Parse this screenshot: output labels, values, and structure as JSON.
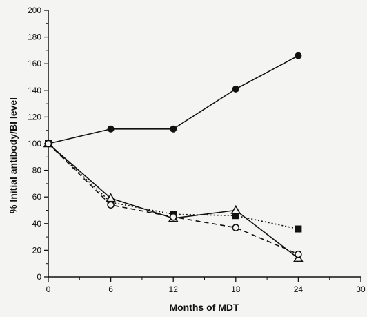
{
  "chart_data": {
    "type": "line",
    "title": "",
    "xlabel": "Months of MDT",
    "ylabel": "% Initial antibody/BI level",
    "xlim": [
      0,
      30
    ],
    "ylim": [
      0,
      200
    ],
    "x_ticks": [
      0,
      6,
      12,
      18,
      24,
      30
    ],
    "x_tick_labels": [
      "0",
      "6",
      "12",
      "18",
      "24",
      "30"
    ],
    "y_ticks": [
      0,
      20,
      40,
      60,
      80,
      100,
      120,
      140,
      160,
      180,
      200
    ],
    "y_tick_labels": [
      "0",
      "20",
      "40",
      "60",
      "80",
      "100",
      "120",
      "140",
      "160",
      "180",
      "200"
    ],
    "grid": false,
    "legend": "none",
    "series": [
      {
        "marker": "filled-circle",
        "line_style": "solid",
        "color": "#111111",
        "x": [
          0,
          6,
          12,
          18,
          24
        ],
        "values": [
          100,
          111,
          111,
          141,
          166
        ]
      },
      {
        "marker": "filled-square",
        "line_style": "dotted",
        "color": "#111111",
        "x": [
          0,
          6,
          12,
          18,
          24
        ],
        "values": [
          100,
          56,
          47,
          46,
          36
        ]
      },
      {
        "marker": "open-triangle",
        "line_style": "solid",
        "color": "#111111",
        "x": [
          0,
          6,
          12,
          18,
          24
        ],
        "values": [
          100,
          59,
          44,
          50,
          14
        ]
      },
      {
        "marker": "open-circle",
        "line_style": "dashed",
        "color": "#111111",
        "x": [
          0,
          6,
          12,
          18,
          24
        ],
        "values": [
          100,
          54,
          45,
          37,
          17
        ]
      }
    ]
  }
}
